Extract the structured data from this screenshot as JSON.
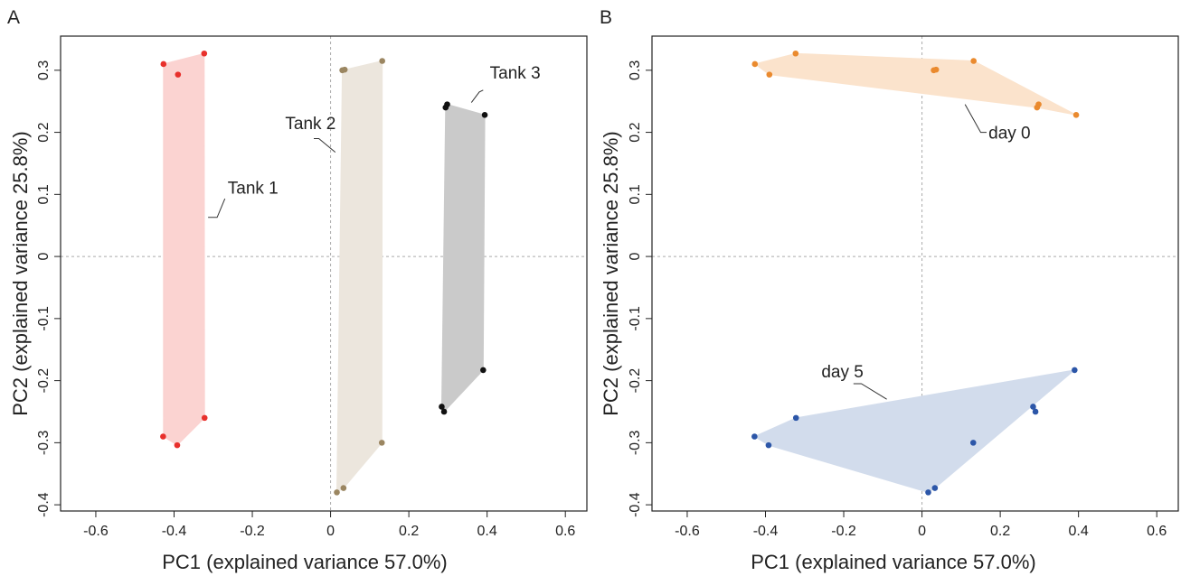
{
  "chart_data": [
    {
      "type": "scatter",
      "panel_label": "A",
      "xlabel": "PC1 (explained variance 57.0%)",
      "ylabel": "PC2 (explained variance 25.8%)",
      "xlim": [
        -0.69,
        0.655
      ],
      "ylim": [
        -0.41,
        0.355
      ],
      "xticks": [
        -0.6,
        -0.4,
        -0.2,
        0,
        0.2,
        0.4,
        0.6
      ],
      "xtick_labels": [
        "-0.6",
        "-0.4",
        "-0.2",
        "0",
        "0.2",
        "0.4",
        "0.6"
      ],
      "yticks": [
        -0.4,
        -0.3,
        -0.2,
        -0.1,
        0,
        0.1,
        0.2,
        0.3
      ],
      "ytick_labels": [
        "-0.4",
        "-0.3",
        "-0.2",
        "-0.1",
        "0",
        "0.1",
        "0.2",
        "0.3"
      ],
      "zero_reference_lines": true,
      "grid": false,
      "series": [
        {
          "name": "Tank 1",
          "point_color": "#e8302c",
          "hull_color": "#fbd3d1",
          "hull": [
            [
              -0.427,
              0.31
            ],
            [
              -0.323,
              0.327
            ],
            [
              -0.322,
              -0.26
            ],
            [
              -0.392,
              -0.304
            ],
            [
              -0.427,
              -0.29
            ]
          ],
          "points": [
            [
              -0.427,
              0.31
            ],
            [
              -0.323,
              0.327
            ],
            [
              -0.39,
              0.293
            ],
            [
              -0.322,
              -0.26
            ],
            [
              -0.428,
              -0.29
            ],
            [
              -0.392,
              -0.304
            ]
          ]
        },
        {
          "name": "Tank 2",
          "point_color": "#9b8661",
          "hull_color": "#ece6dd",
          "hull": [
            [
              0.03,
              0.3
            ],
            [
              0.132,
              0.315
            ],
            [
              0.131,
              -0.3
            ],
            [
              0.033,
              -0.373
            ],
            [
              0.016,
              -0.38
            ]
          ],
          "points": [
            [
              0.03,
              0.3
            ],
            [
              0.036,
              0.301
            ],
            [
              0.132,
              0.315
            ],
            [
              0.131,
              -0.3
            ],
            [
              0.033,
              -0.373
            ],
            [
              0.016,
              -0.38
            ]
          ]
        },
        {
          "name": "Tank 3",
          "point_color": "#111111",
          "hull_color": "#cacaca",
          "hull": [
            [
              0.298,
              0.245
            ],
            [
              0.394,
              0.228
            ],
            [
              0.39,
              -0.183
            ],
            [
              0.29,
              -0.25
            ],
            [
              0.284,
              -0.242
            ],
            [
              0.294,
              0.24
            ]
          ],
          "points": [
            [
              0.298,
              0.245
            ],
            [
              0.294,
              0.24
            ],
            [
              0.394,
              0.228
            ],
            [
              0.39,
              -0.183
            ],
            [
              0.284,
              -0.242
            ],
            [
              0.29,
              -0.25
            ]
          ]
        }
      ],
      "annotations": [
        {
          "text": "Tank 1",
          "label_at": [
            -0.263,
            0.101
          ],
          "line": [
            [
              -0.313,
              0.063
            ],
            [
              -0.29,
              0.063
            ],
            [
              -0.27,
              0.093
            ]
          ]
        },
        {
          "text": "Tank 2",
          "label_at": [
            -0.116,
            0.205
          ],
          "line": [
            [
              -0.043,
              0.19
            ],
            [
              -0.03,
              0.19
            ],
            [
              0.012,
              0.168
            ]
          ]
        },
        {
          "text": "Tank 3",
          "label_at": [
            0.407,
            0.287
          ],
          "line": [
            [
              0.39,
              0.268
            ],
            [
              0.38,
              0.265
            ],
            [
              0.36,
              0.248
            ]
          ]
        }
      ]
    },
    {
      "type": "scatter",
      "panel_label": "B",
      "xlabel": "PC1 (explained variance 57.0%)",
      "ylabel": "PC2 (explained variance 25.8%)",
      "xlim": [
        -0.69,
        0.655
      ],
      "ylim": [
        -0.41,
        0.355
      ],
      "xticks": [
        -0.6,
        -0.4,
        -0.2,
        0,
        0.2,
        0.4,
        0.6
      ],
      "xtick_labels": [
        "-0.6",
        "-0.4",
        "-0.2",
        "0",
        "0.2",
        "0.4",
        "0.6"
      ],
      "yticks": [
        -0.4,
        -0.3,
        -0.2,
        -0.1,
        0,
        0.1,
        0.2,
        0.3
      ],
      "ytick_labels": [
        "-0.4",
        "-0.3",
        "-0.2",
        "-0.1",
        "0",
        "0.1",
        "0.2",
        "0.3"
      ],
      "zero_reference_lines": true,
      "grid": false,
      "series": [
        {
          "name": "day 0",
          "point_color": "#ea8a2e",
          "hull_color": "#fbe3cc",
          "hull": [
            [
              -0.427,
              0.31
            ],
            [
              -0.323,
              0.327
            ],
            [
              0.132,
              0.315
            ],
            [
              0.394,
              0.228
            ],
            [
              0.295,
              0.24
            ],
            [
              -0.39,
              0.293
            ]
          ],
          "points": [
            [
              -0.427,
              0.31
            ],
            [
              -0.323,
              0.327
            ],
            [
              -0.39,
              0.293
            ],
            [
              0.03,
              0.3
            ],
            [
              0.036,
              0.301
            ],
            [
              0.132,
              0.315
            ],
            [
              0.298,
              0.245
            ],
            [
              0.294,
              0.24
            ],
            [
              0.394,
              0.228
            ]
          ]
        },
        {
          "name": "day 5",
          "point_color": "#2c56a8",
          "hull_color": "#d2dcec",
          "hull": [
            [
              -0.428,
              -0.29
            ],
            [
              -0.322,
              -0.26
            ],
            [
              0.39,
              -0.183
            ],
            [
              0.033,
              -0.373
            ],
            [
              0.016,
              -0.38
            ],
            [
              -0.392,
              -0.304
            ]
          ],
          "points": [
            [
              -0.322,
              -0.26
            ],
            [
              -0.428,
              -0.29
            ],
            [
              -0.392,
              -0.304
            ],
            [
              0.131,
              -0.3
            ],
            [
              0.033,
              -0.373
            ],
            [
              0.016,
              -0.38
            ],
            [
              0.39,
              -0.183
            ],
            [
              0.284,
              -0.242
            ],
            [
              0.29,
              -0.25
            ]
          ]
        }
      ],
      "annotations": [
        {
          "text": "day 0",
          "label_at": [
            0.17,
            0.19
          ],
          "line": [
            [
              0.165,
              0.2
            ],
            [
              0.15,
              0.2
            ],
            [
              0.11,
              0.245
            ]
          ]
        },
        {
          "text": "day 5",
          "label_at": [
            -0.257,
            -0.195
          ],
          "line": [
            [
              -0.175,
              -0.205
            ],
            [
              -0.155,
              -0.205
            ],
            [
              -0.09,
              -0.23
            ]
          ]
        }
      ]
    }
  ]
}
